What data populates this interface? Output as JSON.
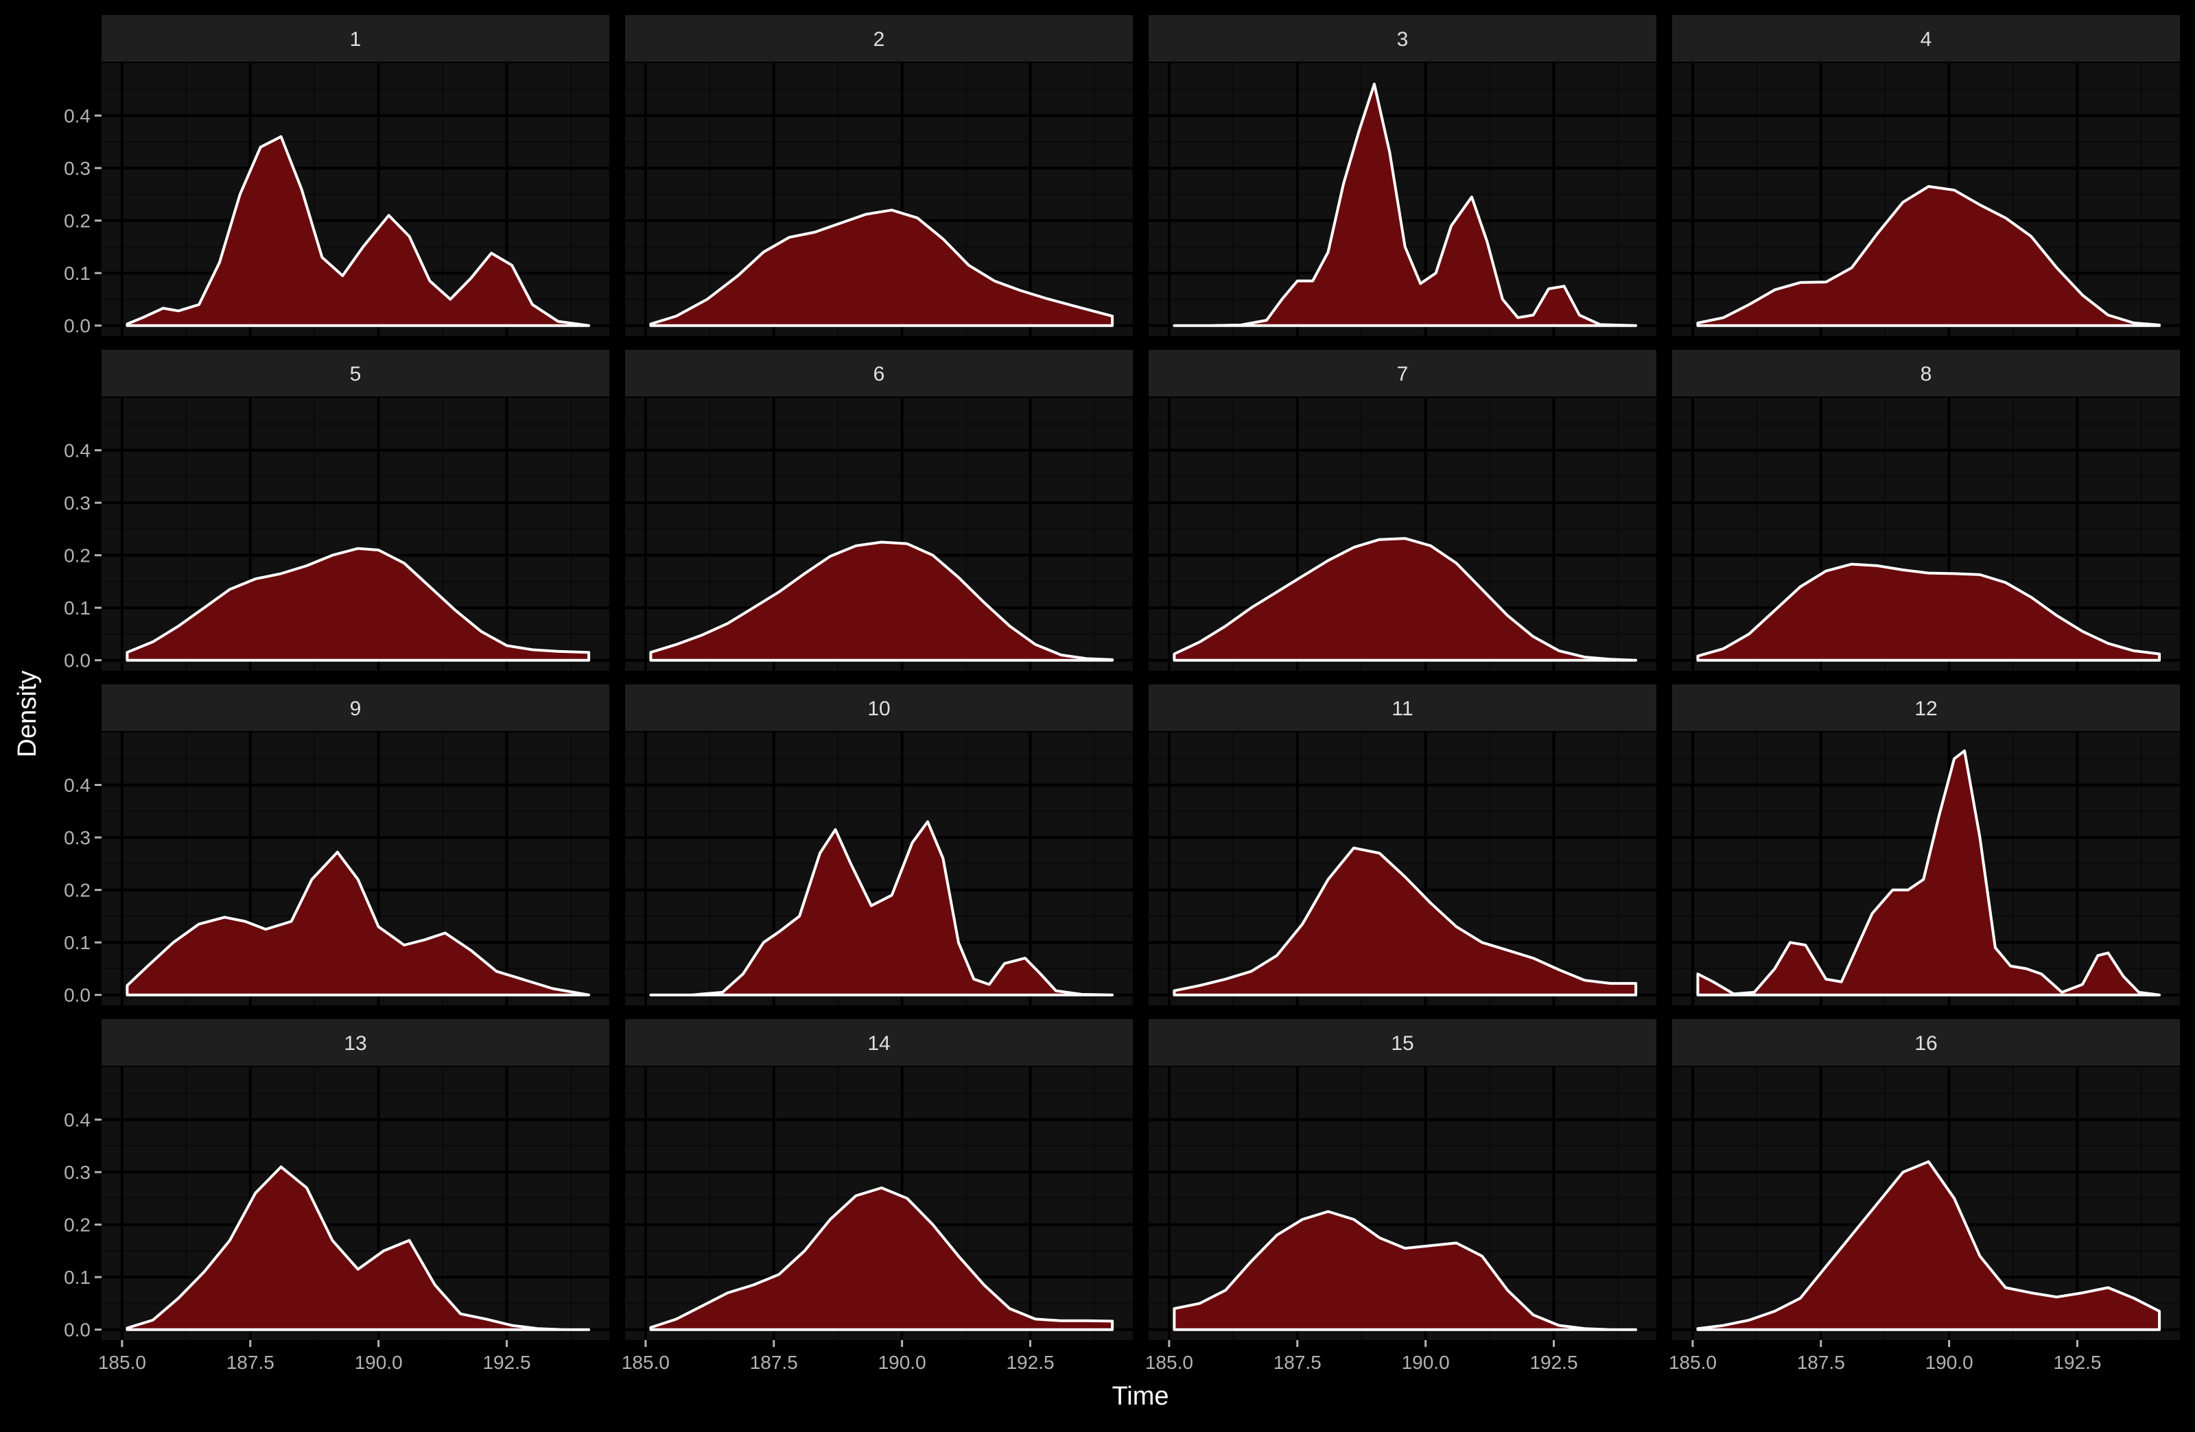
{
  "chart_data": {
    "type": "area",
    "subtype": "faceted-density",
    "title": "",
    "xlabel": "Time",
    "ylabel": "Density",
    "xlim": [
      184.6,
      194.5
    ],
    "ylim": [
      -0.02,
      0.5
    ],
    "x_ticks": [
      185.0,
      187.5,
      190.0,
      192.5
    ],
    "x_tick_labels": [
      "185.0",
      "187.5",
      "190.0",
      "192.5"
    ],
    "y_ticks": [
      0.0,
      0.1,
      0.2,
      0.3,
      0.4
    ],
    "y_tick_labels": [
      "0.0",
      "0.1",
      "0.2",
      "0.3",
      "0.4"
    ],
    "grid": true,
    "legend": "none",
    "facet_layout": {
      "ncol": 4,
      "nrow": 4
    },
    "colors": {
      "background": "#000000",
      "panel": "#111111",
      "strip": "#1f1f1f",
      "grid_major": "#000000",
      "grid_minor": "#0a0a0a",
      "fill": "#6b0a0d",
      "line": "#ffffff",
      "strip_text": "#e0e0e0",
      "tick_text": "#b3b3b3",
      "title_text": "#ffffff"
    },
    "facets": [
      {
        "label": "1",
        "x": [
          185.1,
          185.4,
          185.8,
          186.1,
          186.5,
          186.9,
          187.3,
          187.7,
          188.1,
          188.5,
          188.9,
          189.3,
          189.7,
          190.2,
          190.6,
          191.0,
          191.4,
          191.8,
          192.2,
          192.6,
          193.0,
          193.5,
          194.1
        ],
        "y": [
          0.003,
          0.015,
          0.033,
          0.028,
          0.04,
          0.12,
          0.25,
          0.34,
          0.36,
          0.26,
          0.13,
          0.095,
          0.15,
          0.21,
          0.17,
          0.085,
          0.05,
          0.09,
          0.138,
          0.115,
          0.04,
          0.008,
          0.0
        ]
      },
      {
        "label": "2",
        "x": [
          185.1,
          185.6,
          186.2,
          186.8,
          187.3,
          187.8,
          188.3,
          188.8,
          189.3,
          189.8,
          190.3,
          190.8,
          191.3,
          191.8,
          192.3,
          192.8,
          193.4,
          194.1
        ],
        "y": [
          0.003,
          0.018,
          0.05,
          0.095,
          0.14,
          0.168,
          0.178,
          0.195,
          0.212,
          0.22,
          0.205,
          0.165,
          0.115,
          0.085,
          0.067,
          0.052,
          0.036,
          0.018
        ]
      },
      {
        "label": "3",
        "x": [
          185.1,
          185.8,
          186.4,
          186.9,
          187.2,
          187.5,
          187.8,
          188.1,
          188.4,
          188.7,
          189.0,
          189.3,
          189.6,
          189.9,
          190.2,
          190.5,
          190.9,
          191.2,
          191.5,
          191.8,
          192.1,
          192.4,
          192.7,
          193.0,
          193.4,
          194.1
        ],
        "y": [
          0.0,
          0.0,
          0.001,
          0.01,
          0.05,
          0.085,
          0.085,
          0.14,
          0.27,
          0.37,
          0.46,
          0.33,
          0.15,
          0.08,
          0.1,
          0.19,
          0.245,
          0.16,
          0.05,
          0.015,
          0.02,
          0.07,
          0.075,
          0.02,
          0.002,
          0.0
        ]
      },
      {
        "label": "4",
        "x": [
          185.1,
          185.6,
          186.1,
          186.6,
          187.1,
          187.6,
          188.1,
          188.6,
          189.1,
          189.6,
          190.1,
          190.6,
          191.1,
          191.6,
          192.1,
          192.6,
          193.1,
          193.6,
          194.1
        ],
        "y": [
          0.005,
          0.015,
          0.04,
          0.068,
          0.082,
          0.083,
          0.11,
          0.175,
          0.235,
          0.265,
          0.258,
          0.23,
          0.205,
          0.17,
          0.11,
          0.058,
          0.02,
          0.005,
          0.001
        ]
      },
      {
        "label": "5",
        "x": [
          185.1,
          185.6,
          186.1,
          186.6,
          187.1,
          187.6,
          188.1,
          188.6,
          189.1,
          189.6,
          190.0,
          190.5,
          191.0,
          191.5,
          192.0,
          192.5,
          193.0,
          193.5,
          194.1
        ],
        "y": [
          0.015,
          0.035,
          0.065,
          0.1,
          0.135,
          0.155,
          0.165,
          0.18,
          0.2,
          0.213,
          0.21,
          0.185,
          0.14,
          0.095,
          0.055,
          0.028,
          0.02,
          0.017,
          0.015
        ]
      },
      {
        "label": "6",
        "x": [
          185.1,
          185.6,
          186.1,
          186.6,
          187.1,
          187.6,
          188.1,
          188.6,
          189.1,
          189.6,
          190.1,
          190.6,
          191.1,
          191.6,
          192.1,
          192.6,
          193.1,
          193.6,
          194.1
        ],
        "y": [
          0.015,
          0.03,
          0.048,
          0.07,
          0.1,
          0.13,
          0.165,
          0.198,
          0.218,
          0.225,
          0.222,
          0.2,
          0.158,
          0.11,
          0.065,
          0.03,
          0.01,
          0.003,
          0.001
        ]
      },
      {
        "label": "7",
        "x": [
          185.1,
          185.6,
          186.1,
          186.6,
          187.1,
          187.6,
          188.1,
          188.6,
          189.1,
          189.6,
          190.1,
          190.6,
          191.1,
          191.6,
          192.1,
          192.6,
          193.1,
          193.6,
          194.1
        ],
        "y": [
          0.012,
          0.035,
          0.065,
          0.1,
          0.13,
          0.16,
          0.19,
          0.215,
          0.23,
          0.232,
          0.218,
          0.185,
          0.135,
          0.085,
          0.045,
          0.018,
          0.006,
          0.002,
          0.0
        ]
      },
      {
        "label": "8",
        "x": [
          185.1,
          185.6,
          186.1,
          186.6,
          187.1,
          187.6,
          188.1,
          188.6,
          189.1,
          189.6,
          190.1,
          190.6,
          191.1,
          191.6,
          192.1,
          192.6,
          193.1,
          193.6,
          194.1
        ],
        "y": [
          0.008,
          0.022,
          0.05,
          0.095,
          0.14,
          0.17,
          0.183,
          0.18,
          0.172,
          0.166,
          0.165,
          0.163,
          0.148,
          0.12,
          0.085,
          0.055,
          0.032,
          0.018,
          0.012
        ]
      },
      {
        "label": "9",
        "x": [
          185.1,
          185.5,
          186.0,
          186.5,
          187.0,
          187.4,
          187.8,
          188.3,
          188.7,
          189.2,
          189.6,
          190.0,
          190.5,
          190.9,
          191.3,
          191.8,
          192.3,
          192.8,
          193.4,
          194.1
        ],
        "y": [
          0.018,
          0.055,
          0.1,
          0.135,
          0.148,
          0.14,
          0.125,
          0.14,
          0.22,
          0.272,
          0.22,
          0.13,
          0.095,
          0.105,
          0.118,
          0.085,
          0.045,
          0.03,
          0.012,
          0.0
        ]
      },
      {
        "label": "10",
        "x": [
          185.1,
          185.9,
          186.5,
          186.9,
          187.3,
          187.6,
          188.0,
          188.4,
          188.7,
          189.0,
          189.4,
          189.8,
          190.2,
          190.5,
          190.8,
          191.1,
          191.4,
          191.7,
          192.0,
          192.4,
          192.7,
          193.0,
          193.5,
          194.1
        ],
        "y": [
          0.0,
          0.0,
          0.005,
          0.04,
          0.1,
          0.12,
          0.15,
          0.27,
          0.315,
          0.25,
          0.17,
          0.19,
          0.29,
          0.33,
          0.26,
          0.1,
          0.03,
          0.02,
          0.06,
          0.07,
          0.04,
          0.008,
          0.001,
          0.0
        ]
      },
      {
        "label": "11",
        "x": [
          185.1,
          185.6,
          186.1,
          186.6,
          187.1,
          187.6,
          188.1,
          188.6,
          189.1,
          189.6,
          190.1,
          190.6,
          191.1,
          191.6,
          192.1,
          192.6,
          193.1,
          193.6,
          194.1
        ],
        "y": [
          0.008,
          0.018,
          0.03,
          0.045,
          0.075,
          0.135,
          0.22,
          0.28,
          0.27,
          0.225,
          0.175,
          0.13,
          0.1,
          0.085,
          0.07,
          0.048,
          0.028,
          0.022,
          0.022
        ]
      },
      {
        "label": "12",
        "x": [
          185.1,
          185.4,
          185.8,
          186.2,
          186.6,
          186.9,
          187.2,
          187.6,
          187.9,
          188.2,
          188.5,
          188.9,
          189.2,
          189.5,
          189.8,
          190.1,
          190.3,
          190.6,
          190.9,
          191.2,
          191.5,
          191.8,
          192.2,
          192.6,
          192.9,
          193.1,
          193.4,
          193.7,
          194.1
        ],
        "y": [
          0.04,
          0.025,
          0.002,
          0.005,
          0.05,
          0.1,
          0.095,
          0.03,
          0.025,
          0.09,
          0.155,
          0.2,
          0.2,
          0.22,
          0.34,
          0.45,
          0.465,
          0.3,
          0.09,
          0.055,
          0.05,
          0.04,
          0.005,
          0.02,
          0.075,
          0.08,
          0.035,
          0.005,
          0.0
        ]
      },
      {
        "label": "13",
        "x": [
          185.1,
          185.6,
          186.1,
          186.6,
          187.1,
          187.6,
          188.1,
          188.6,
          189.1,
          189.6,
          190.1,
          190.6,
          191.1,
          191.6,
          192.1,
          192.6,
          193.1,
          193.6,
          194.1
        ],
        "y": [
          0.003,
          0.018,
          0.06,
          0.11,
          0.17,
          0.26,
          0.31,
          0.27,
          0.17,
          0.115,
          0.15,
          0.17,
          0.085,
          0.03,
          0.02,
          0.008,
          0.002,
          0.0,
          0.0
        ]
      },
      {
        "label": "14",
        "x": [
          185.1,
          185.6,
          186.1,
          186.6,
          187.1,
          187.6,
          188.1,
          188.6,
          189.1,
          189.6,
          190.1,
          190.6,
          191.1,
          191.6,
          192.1,
          192.6,
          193.1,
          193.6,
          194.1
        ],
        "y": [
          0.004,
          0.02,
          0.045,
          0.07,
          0.085,
          0.105,
          0.15,
          0.21,
          0.255,
          0.27,
          0.25,
          0.2,
          0.14,
          0.085,
          0.04,
          0.02,
          0.017,
          0.017,
          0.016
        ]
      },
      {
        "label": "15",
        "x": [
          185.1,
          185.6,
          186.1,
          186.6,
          187.1,
          187.6,
          188.1,
          188.6,
          189.1,
          189.6,
          190.1,
          190.6,
          191.1,
          191.6,
          192.1,
          192.6,
          193.1,
          193.6,
          194.1
        ],
        "y": [
          0.04,
          0.05,
          0.075,
          0.13,
          0.18,
          0.21,
          0.225,
          0.21,
          0.175,
          0.155,
          0.16,
          0.165,
          0.14,
          0.075,
          0.028,
          0.008,
          0.002,
          0.0,
          0.0
        ]
      },
      {
        "label": "16",
        "x": [
          185.1,
          185.6,
          186.1,
          186.6,
          187.1,
          187.6,
          188.1,
          188.6,
          189.1,
          189.6,
          190.1,
          190.6,
          191.1,
          191.6,
          192.1,
          192.6,
          193.1,
          193.6,
          194.1
        ],
        "y": [
          0.002,
          0.008,
          0.018,
          0.035,
          0.06,
          0.12,
          0.18,
          0.24,
          0.3,
          0.32,
          0.25,
          0.14,
          0.08,
          0.07,
          0.062,
          0.07,
          0.08,
          0.06,
          0.035
        ]
      }
    ]
  }
}
